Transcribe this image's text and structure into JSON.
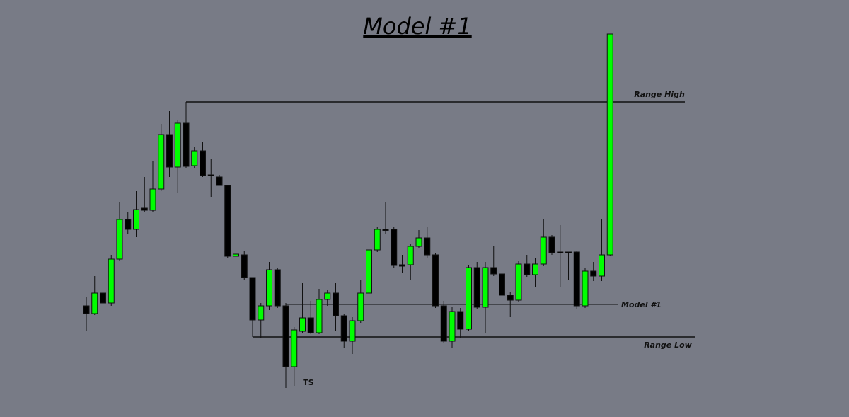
{
  "chart_data": {
    "type": "candlestick",
    "title": "Model #1",
    "ylim": [
      0,
      589
    ],
    "up_color": "#00ff00",
    "down_color": "#000000",
    "open": [
      157,
      146,
      175,
      161,
      223,
      279,
      265,
      295,
      292,
      322,
      399,
      353,
      415,
      355,
      376,
      342,
      339,
      327,
      227,
      229,
      197,
      137,
      157,
      208,
      157,
      71,
      121,
      140,
      119,
      166,
      175,
      143,
      107,
      136,
      175,
      236,
      265,
      265,
      215,
      215,
      241,
      253,
      229,
      157,
      107,
      149,
      124,
      211,
      155,
      211,
      202,
      172,
      165,
      216,
      201,
      216,
      254,
      233,
      233,
      233,
      157,
      206,
      199,
      229
    ],
    "high": [
      169,
      199,
      189,
      229,
      304,
      289,
      319,
      339,
      361,
      414,
      432,
      419,
      445,
      381,
      389,
      364,
      342,
      327,
      234,
      234,
      197,
      161,
      219,
      211,
      161,
      127,
      189,
      164,
      181,
      179,
      189,
      145,
      141,
      194,
      239,
      269,
      304,
      269,
      229,
      244,
      264,
      269,
      232,
      164,
      156,
      154,
      214,
      219,
      219,
      241,
      209,
      176,
      221,
      229,
      224,
      279,
      257,
      271,
      233,
      234,
      211,
      219,
      279,
      541
    ],
    "low": [
      122,
      144,
      137,
      157,
      221,
      259,
      254,
      289,
      289,
      319,
      339,
      317,
      352,
      351,
      339,
      311,
      327,
      224,
      199,
      194,
      113,
      111,
      151,
      154,
      41,
      44,
      119,
      117,
      117,
      157,
      121,
      97,
      89,
      133,
      173,
      233,
      259,
      211,
      204,
      194,
      239,
      224,
      154,
      105,
      97,
      111,
      122,
      153,
      119,
      199,
      151,
      141,
      162,
      198,
      184,
      213,
      229,
      183,
      193,
      153,
      154,
      192,
      192,
      227
    ],
    "close": [
      146,
      175,
      161,
      223,
      279,
      265,
      293,
      292,
      322,
      399,
      353,
      415,
      354,
      376,
      341,
      341,
      327,
      227,
      230,
      197,
      137,
      157,
      208,
      157,
      71,
      123,
      140,
      119,
      166,
      175,
      143,
      107,
      136,
      175,
      236,
      265,
      264,
      214,
      213,
      241,
      253,
      229,
      157,
      107,
      149,
      124,
      211,
      155,
      211,
      202,
      172,
      165,
      216,
      201,
      216,
      254,
      232,
      232,
      232,
      157,
      206,
      199,
      229,
      541
    ],
    "levels": [
      {
        "label": "Range High",
        "value": 445
      },
      {
        "label": "Model #1",
        "value": 159
      },
      {
        "label": "Range Low",
        "value": 113
      }
    ],
    "annotations": [
      {
        "text": "TS"
      }
    ]
  }
}
